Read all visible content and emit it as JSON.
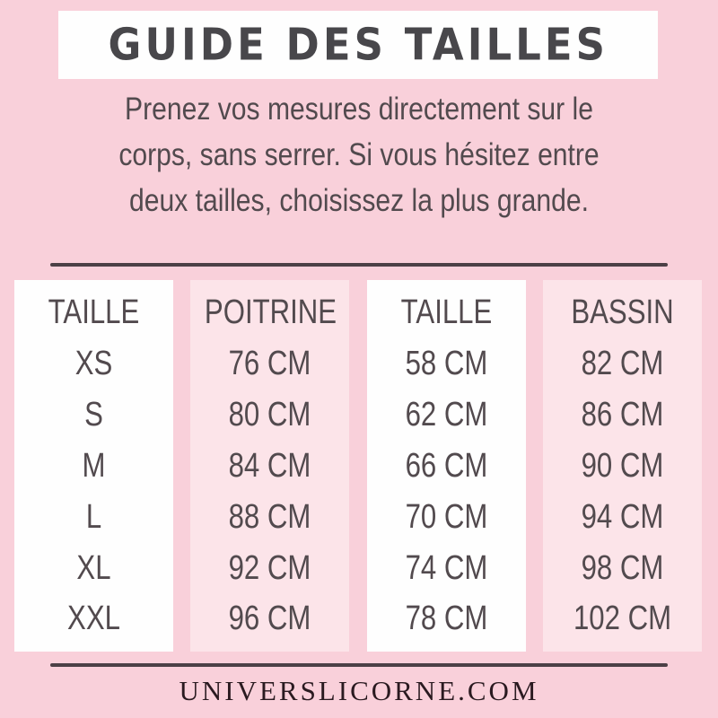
{
  "title": "GUIDE DES TAILLES",
  "intro": {
    "lines": [
      "Prenez vos mesures directement sur le",
      "corps, sans serrer. Si vous hésitez entre",
      "deux tailles, choisissez la plus grande."
    ]
  },
  "table": {
    "columns": [
      {
        "header": "TAILLE",
        "values": [
          "XS",
          "S",
          "M",
          "L",
          "XL",
          "XXL"
        ]
      },
      {
        "header": "POITRINE",
        "values": [
          "76 CM",
          "80 CM",
          "84 CM",
          "88 CM",
          "92 CM",
          "96 CM"
        ]
      },
      {
        "header": "TAILLE",
        "values": [
          "58 CM",
          "62 CM",
          "66 CM",
          "70 CM",
          "74 CM",
          "78 CM"
        ]
      },
      {
        "header": "BASSIN",
        "values": [
          "82 CM",
          "86 CM",
          "90 CM",
          "94 CM",
          "98 CM",
          "102 CM"
        ]
      }
    ]
  },
  "footer": {
    "url": "UNIVERSLICORNE.COM"
  },
  "colors": {
    "page_bg": "#f9d0da",
    "panel_bg": "#fce4e9",
    "panel_white": "#fefefe",
    "title_color": "#48474b",
    "text_color": "#524a4e",
    "divider_color": "#4c4046",
    "footer_color": "#2a1a20"
  }
}
